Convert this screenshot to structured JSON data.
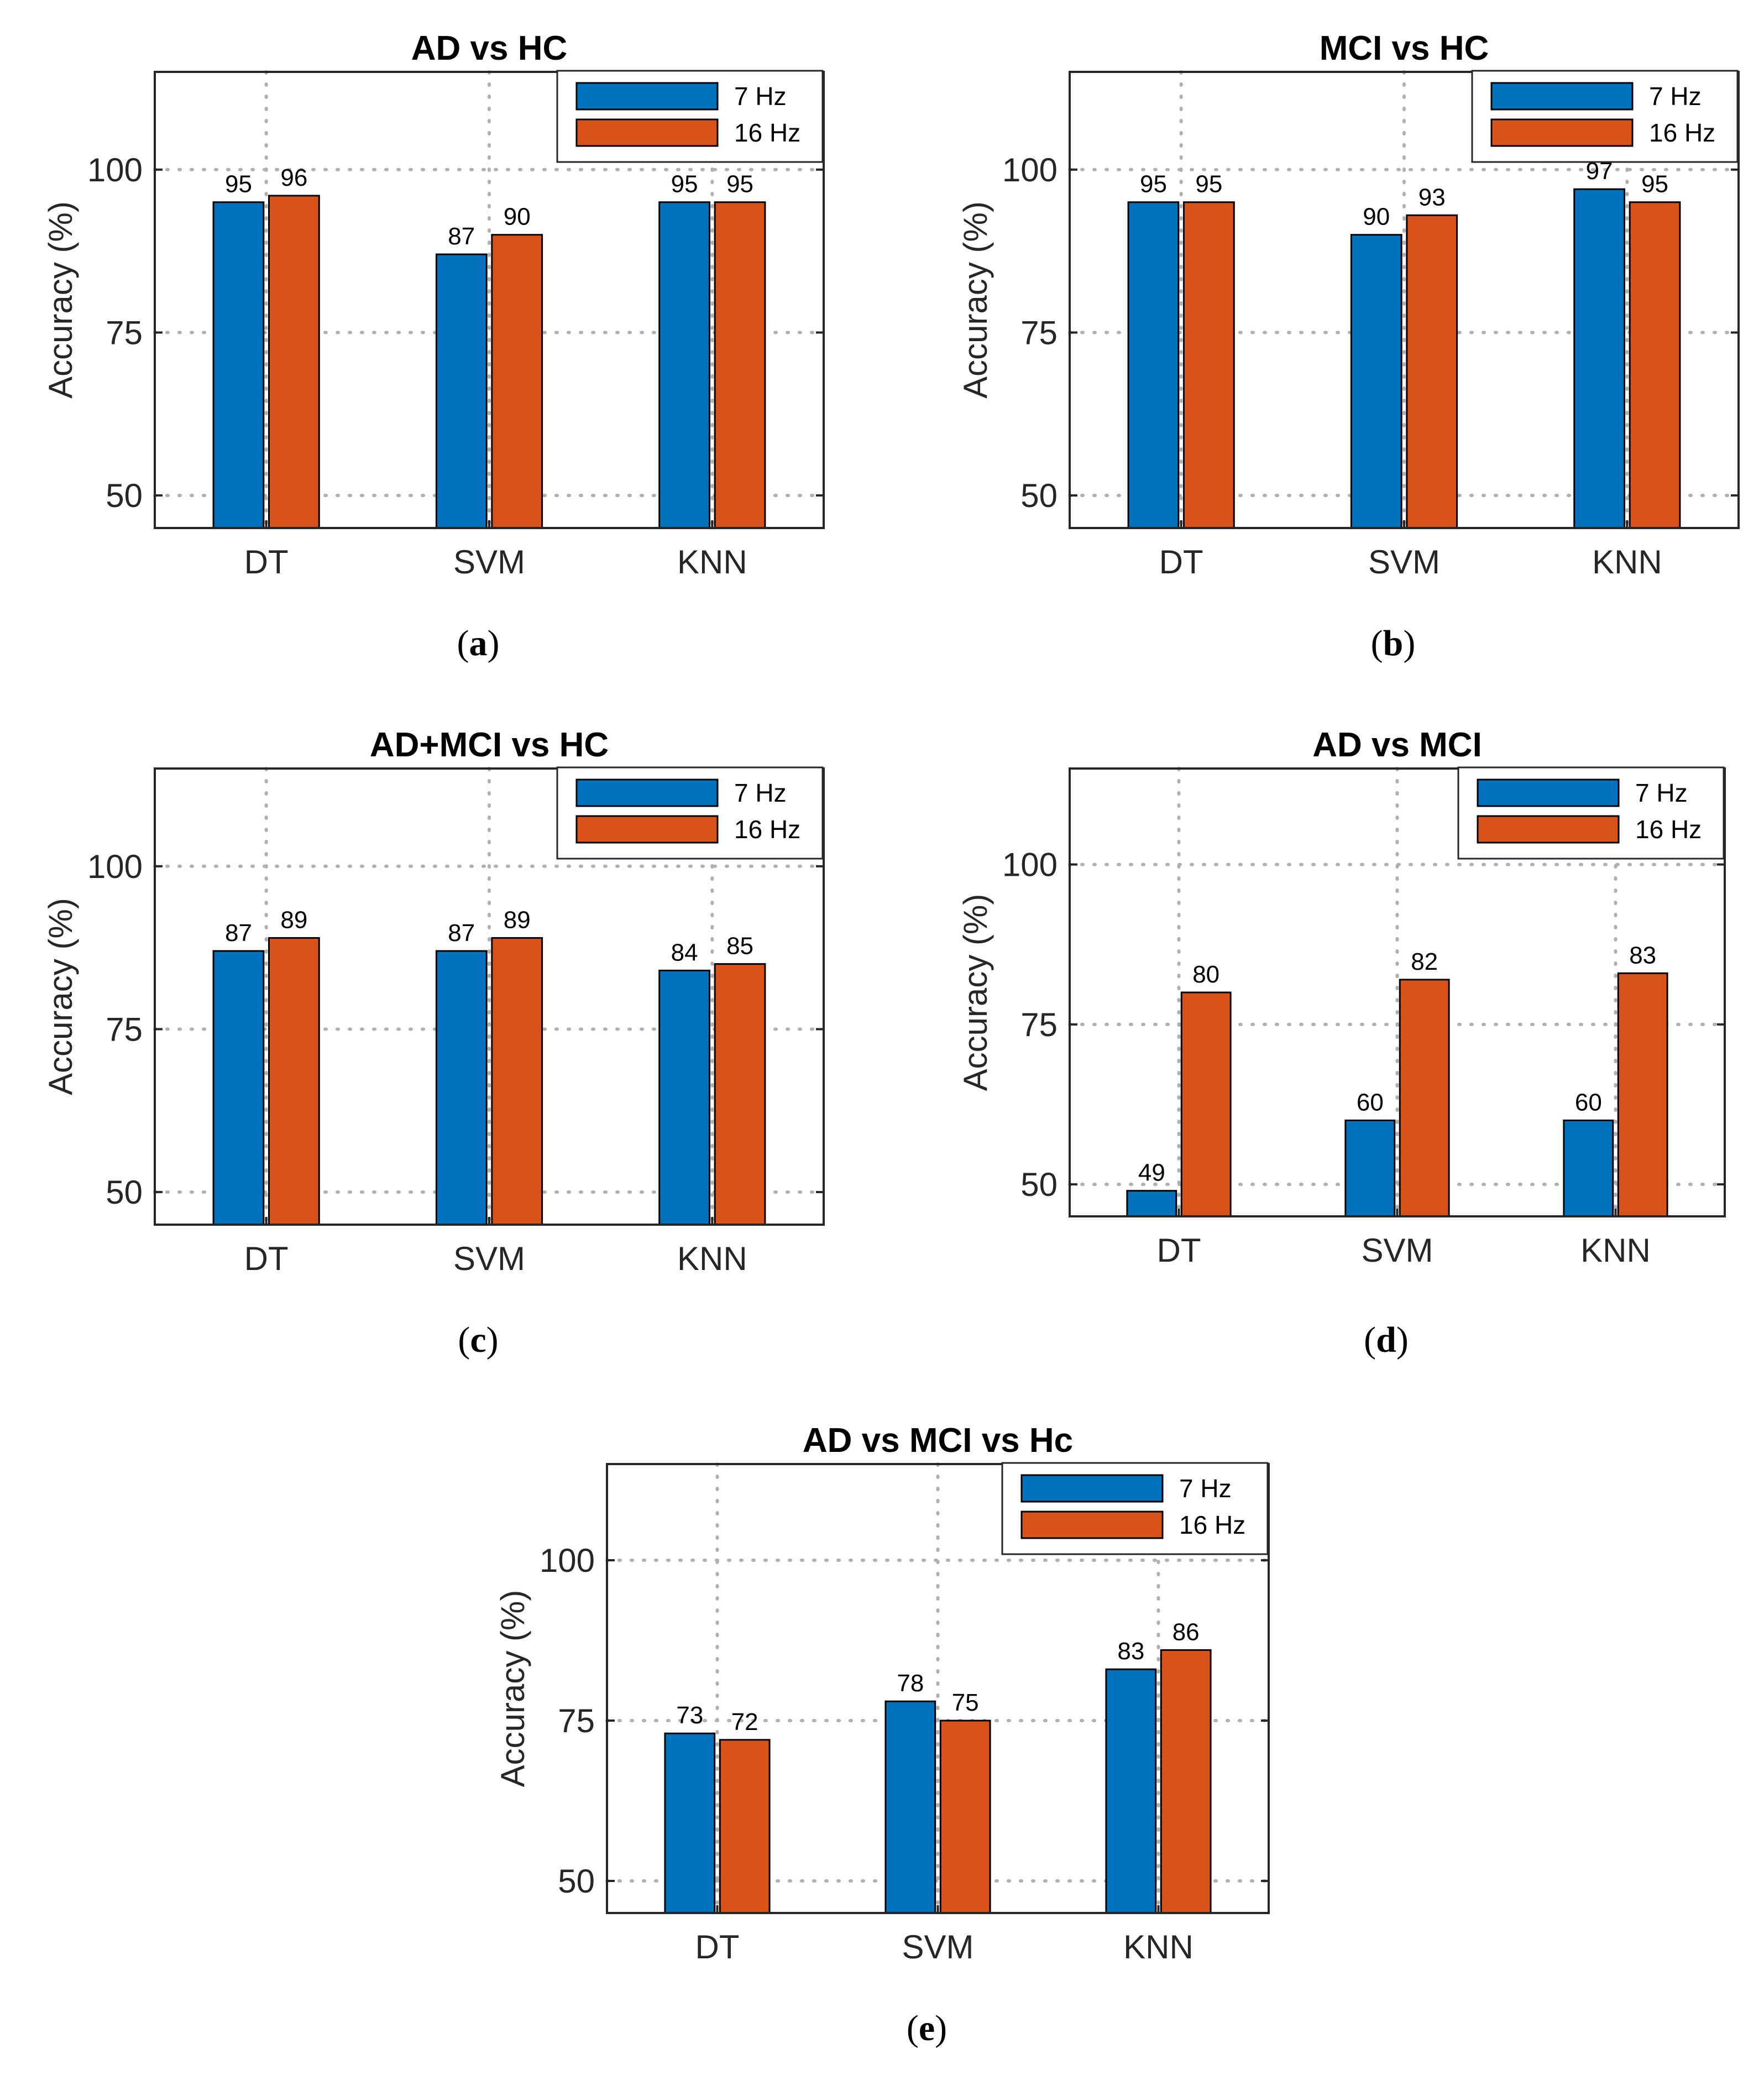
{
  "chart_data": [
    {
      "type": "bar",
      "title": "AD vs HC",
      "caption_letter": "a",
      "categories": [
        "DT",
        "SVM",
        "KNN"
      ],
      "series": [
        {
          "name": "7 Hz",
          "values": [
            95,
            87,
            95
          ]
        },
        {
          "name": "16 Hz",
          "values": [
            96,
            90,
            95
          ]
        }
      ],
      "xlabel": "",
      "ylabel": "Accuracy (%)",
      "ylim": [
        45,
        115
      ],
      "yticks": [
        50,
        75,
        100
      ],
      "grid": true,
      "legend": "top-right"
    },
    {
      "type": "bar",
      "title": "MCI vs HC",
      "caption_letter": "b",
      "categories": [
        "DT",
        "SVM",
        "KNN"
      ],
      "series": [
        {
          "name": "7 Hz",
          "values": [
            95,
            90,
            97
          ]
        },
        {
          "name": "16 Hz",
          "values": [
            95,
            93,
            95
          ]
        }
      ],
      "xlabel": "",
      "ylabel": "Accuracy (%)",
      "ylim": [
        45,
        115
      ],
      "yticks": [
        50,
        75,
        100
      ],
      "grid": true,
      "legend": "top-right"
    },
    {
      "type": "bar",
      "title": "AD+MCI vs HC",
      "caption_letter": "c",
      "categories": [
        "DT",
        "SVM",
        "KNN"
      ],
      "series": [
        {
          "name": "7 Hz",
          "values": [
            87,
            87,
            84
          ]
        },
        {
          "name": "16 Hz",
          "values": [
            89,
            89,
            85
          ]
        }
      ],
      "xlabel": "",
      "ylabel": "Accuracy (%)",
      "ylim": [
        45,
        115
      ],
      "yticks": [
        50,
        75,
        100
      ],
      "grid": true,
      "legend": "top-right"
    },
    {
      "type": "bar",
      "title": "AD vs MCI",
      "caption_letter": "d",
      "categories": [
        "DT",
        "SVM",
        "KNN"
      ],
      "series": [
        {
          "name": "7 Hz",
          "values": [
            49,
            60,
            60
          ]
        },
        {
          "name": "16 Hz",
          "values": [
            80,
            82,
            83
          ]
        }
      ],
      "xlabel": "",
      "ylabel": "Accuracy (%)",
      "ylim": [
        45,
        115
      ],
      "yticks": [
        50,
        75,
        100
      ],
      "grid": true,
      "legend": "top-right"
    },
    {
      "type": "bar",
      "title": "AD vs MCI vs Hc",
      "caption_letter": "e",
      "categories": [
        "DT",
        "SVM",
        "KNN"
      ],
      "series": [
        {
          "name": "7 Hz",
          "values": [
            73,
            78,
            83
          ]
        },
        {
          "name": "16 Hz",
          "values": [
            72,
            75,
            86
          ]
        }
      ],
      "xlabel": "",
      "ylabel": "Accuracy (%)",
      "ylim": [
        45,
        115
      ],
      "yticks": [
        50,
        75,
        100
      ],
      "grid": true,
      "legend": "top-right"
    }
  ],
  "colors": {
    "series_7hz": "#0072BD",
    "series_16hz": "#D95319",
    "axis": "#262626",
    "grid": "#b0b0b0"
  }
}
